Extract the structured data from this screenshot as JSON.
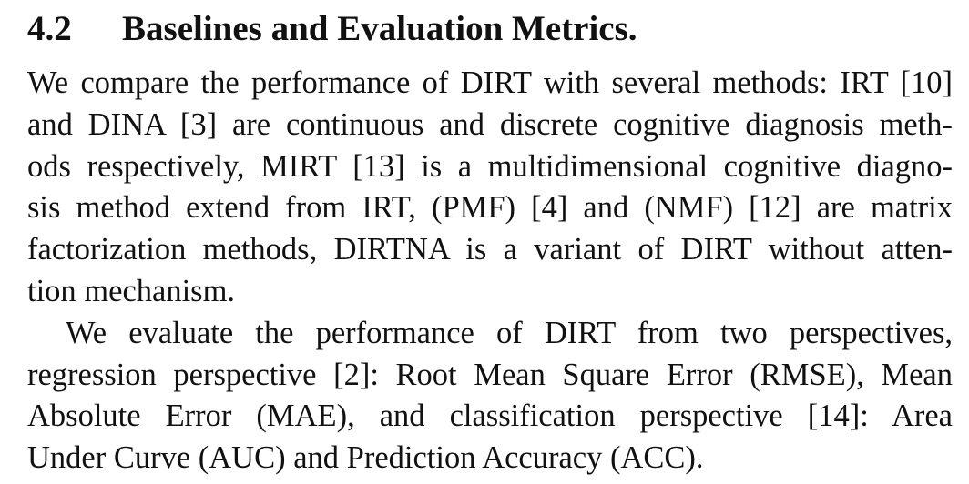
{
  "section": {
    "number": "4.2",
    "title": "Baselines and Evaluation Metrics."
  },
  "paragraphs": [
    {
      "lines": [
        "We compare the performance of DIRT with several methods: IRT [10]",
        "and DINA [3] are continuous and discrete cognitive diagnosis meth-",
        "ods respectively, MIRT [13] is a multidimensional cognitive diagno-",
        "sis method extend from IRT, (PMF) [4] and (NMF) [12] are matrix",
        "factorization methods, DIRTNA is a variant of DIRT without atten-",
        "tion mechanism."
      ]
    },
    {
      "lines": [
        "We evaluate the performance of DIRT from two perspectives,",
        "regression perspective [2]: Root Mean Square Error (RMSE), Mean",
        "Absolute Error (MAE), and classification perspective [14]: Area",
        "Under Curve (AUC) and Prediction Accuracy (ACC)."
      ]
    }
  ]
}
